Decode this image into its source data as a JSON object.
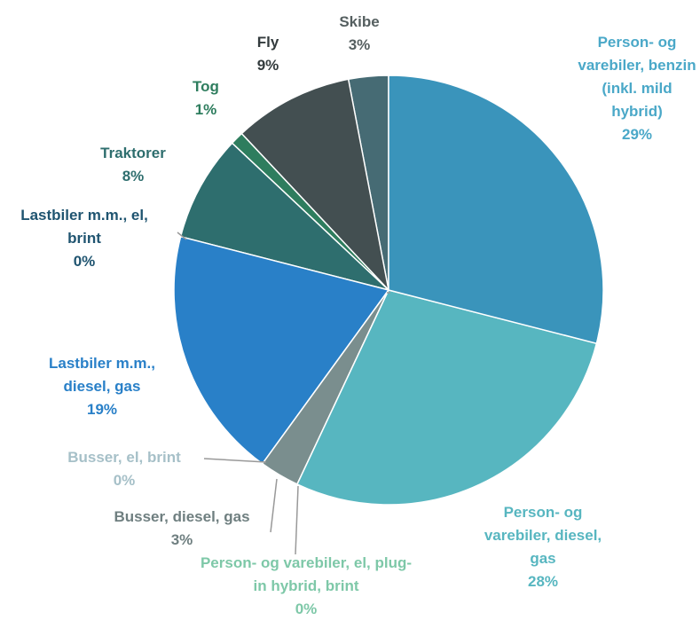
{
  "chart_data": {
    "type": "pie",
    "categories": [
      "Person- og varebiler, benzin (inkl. mild hybrid)",
      "Person- og varebiler, diesel, gas",
      "Person- og varebiler, el, plug-in hybrid, brint",
      "Busser, diesel, gas",
      "Busser, el, brint",
      "Lastbiler m.m., diesel, gas",
      "Lastbiler m.m., el, brint",
      "Traktorer",
      "Tog",
      "Fly",
      "Skibe"
    ],
    "values": [
      29,
      28,
      0,
      3,
      0,
      19,
      0,
      8,
      1,
      9,
      3
    ],
    "value_labels": [
      "29%",
      "28%",
      "0%",
      "3%",
      "0%",
      "19%",
      "0%",
      "8%",
      "1%",
      "9%",
      "3%"
    ],
    "colors": [
      "#3a94bb",
      "#57b6c0",
      "#7ec8a8",
      "#7a8e8e",
      "#a6c0c8",
      "#2980c8",
      "#1f5f7a",
      "#2e6e6e",
      "#2e7d5e",
      "#434f51",
      "#466b74"
    ],
    "label_colors": [
      "#4aa8c8",
      "#57b6c0",
      "#7ec8a8",
      "#6f7f80",
      "#a6c0c8",
      "#2980c8",
      "#1f5470",
      "#2e6e6e",
      "#2e7d5e",
      "#333b3d",
      "#555f60"
    ]
  }
}
